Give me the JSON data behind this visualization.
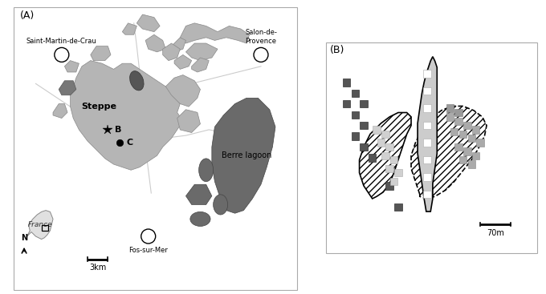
{
  "fig_width": 6.8,
  "fig_height": 3.67,
  "dpi": 100,
  "panel_A_label": "(A)",
  "panel_B_label": "(B)",
  "steppe_label": "Steppe",
  "berre_label": "Berre lagoon",
  "france_label": "France",
  "scale_label_A": "3km",
  "scale_label_B": "70m",
  "city_SMC": "Saint-Martin-de-Crau",
  "city_Salon": "Salon-de-\nProvence",
  "city_Fos": "Fos-sur-Mer",
  "north_label": "N",
  "label_B_marker": "B",
  "label_C_marker": "C",
  "steppe_color": "#b5b5b5",
  "dark_gray": "#666666",
  "berre_color": "#6a6a6a",
  "road_color": "#cccccc",
  "border_color": "#bbbbbb"
}
